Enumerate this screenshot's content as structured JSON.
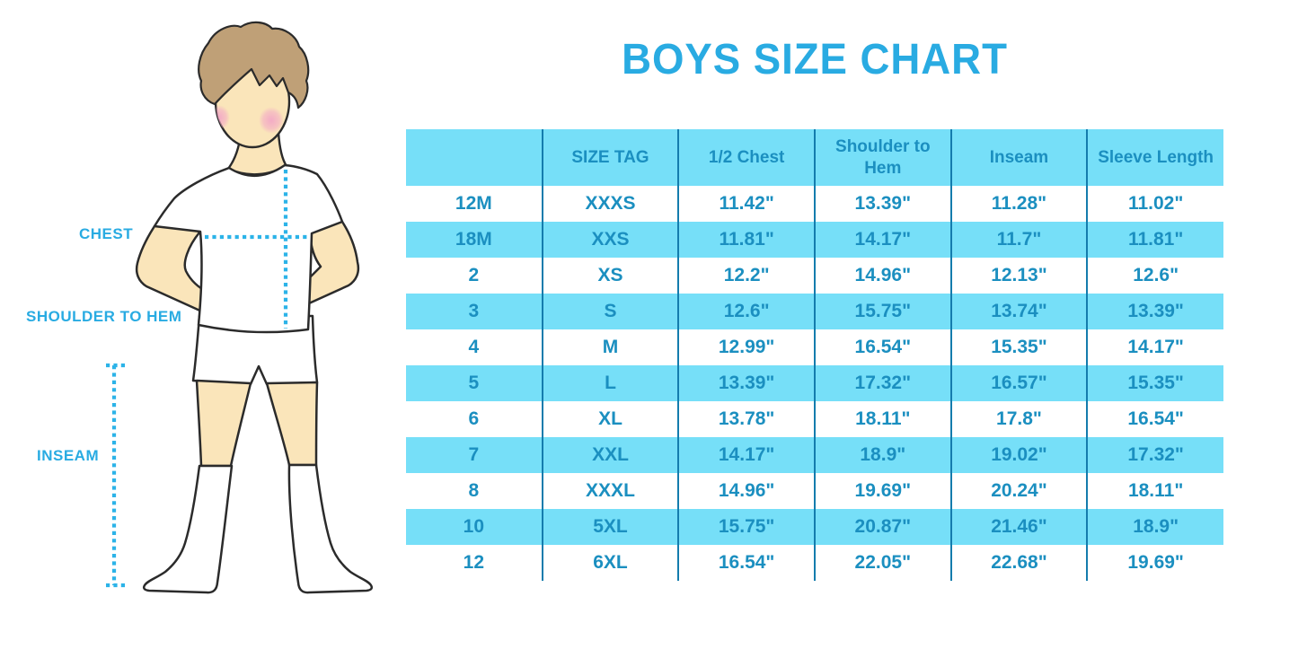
{
  "title": "BOYS SIZE CHART",
  "figure_labels": {
    "chest": "CHEST",
    "shoulder_to_hem": "SHOULDER TO HEM",
    "inseam": "INSEAM"
  },
  "colors": {
    "accent": "#29ABE2",
    "table_text": "#1B8FC0",
    "row_fill": "#76DFF8",
    "grid_line": "#147CAD"
  },
  "chart_data": {
    "type": "table",
    "title": "BOYS SIZE CHART",
    "columns": [
      "",
      "SIZE TAG",
      "1/2 Chest",
      "Shoulder to Hem",
      "Inseam",
      "Sleeve Length"
    ],
    "rows": [
      [
        "12M",
        "XXXS",
        "11.42\"",
        "13.39\"",
        "11.28\"",
        "11.02\""
      ],
      [
        "18M",
        "XXS",
        "11.81\"",
        "14.17\"",
        "11.7\"",
        "11.81\""
      ],
      [
        "2",
        "XS",
        "12.2\"",
        "14.96\"",
        "12.13\"",
        "12.6\""
      ],
      [
        "3",
        "S",
        "12.6\"",
        "15.75\"",
        "13.74\"",
        "13.39\""
      ],
      [
        "4",
        "M",
        "12.99\"",
        "16.54\"",
        "15.35\"",
        "14.17\""
      ],
      [
        "5",
        "L",
        "13.39\"",
        "17.32\"",
        "16.57\"",
        "15.35\""
      ],
      [
        "6",
        "XL",
        "13.78\"",
        "18.11\"",
        "17.8\"",
        "16.54\""
      ],
      [
        "7",
        "XXL",
        "14.17\"",
        "18.9\"",
        "19.02\"",
        "17.32\""
      ],
      [
        "8",
        "XXXL",
        "14.96\"",
        "19.69\"",
        "20.24\"",
        "18.11\""
      ],
      [
        "10",
        "5XL",
        "15.75\"",
        "20.87\"",
        "21.46\"",
        "18.9\""
      ],
      [
        "12",
        "6XL",
        "16.54\"",
        "22.05\"",
        "22.68\"",
        "19.69\""
      ]
    ]
  }
}
